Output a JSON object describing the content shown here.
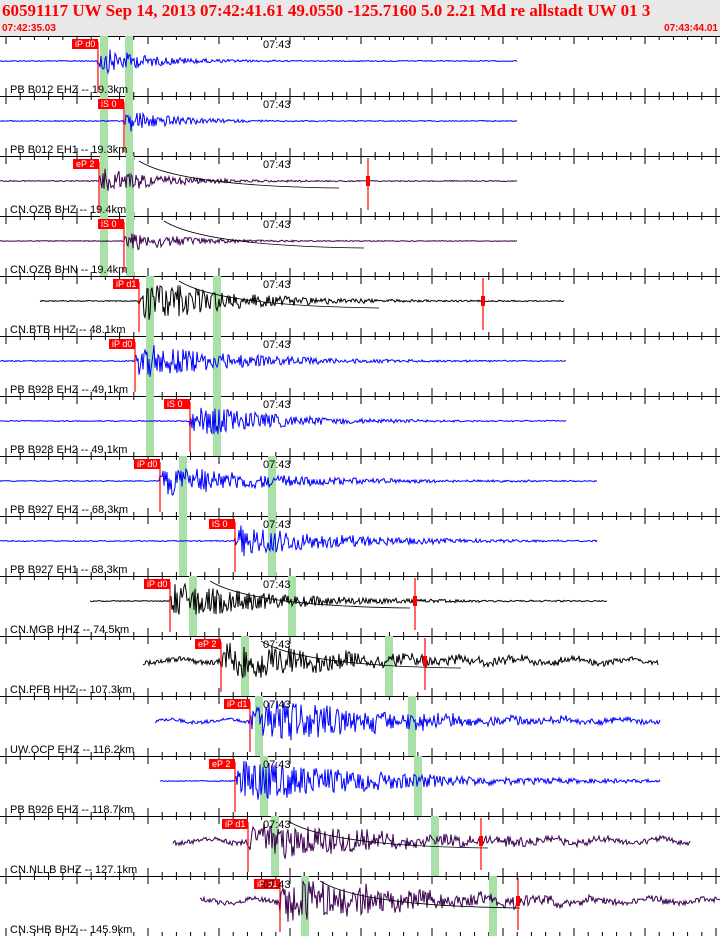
{
  "header": {
    "title": "60591117 UW Sep 14, 2013 07:42:41.61   49.0550 -125.7160  5.0 2.21 Md re allstadt UW 01    3",
    "start_time": "07:42:35.03",
    "end_time": "07:43:44.01"
  },
  "colors": {
    "blue": "#0000ff",
    "black": "#000000",
    "purple": "#3a0050",
    "pick": "#ff0000",
    "window": "#a8e0a8"
  },
  "time_tick": "07:43",
  "traces": [
    {
      "label": "PB B012 EHZ -- 19.3km",
      "color": "blue",
      "start": 0,
      "end": 517,
      "pick_label": "iP d0",
      "pick_x": 98,
      "gates": [
        104,
        129
      ],
      "onset": 98,
      "amp": 14,
      "dur": 160,
      "noise": 0.5,
      "marker": null
    },
    {
      "label": "PB B012 EH1 -- 19.3km",
      "color": "blue",
      "start": 0,
      "end": 517,
      "pick_label": "iS 0",
      "pick_x": 124,
      "gates": [
        104,
        129
      ],
      "onset": 124,
      "amp": 13,
      "dur": 140,
      "noise": 0.5,
      "marker": null
    },
    {
      "label": "CN.OZB BHZ -- 19.4km",
      "color": "purple",
      "start": 0,
      "end": 517,
      "pick_label": "eP 2",
      "pick_x": 99,
      "gates": [
        104,
        130
      ],
      "onset": 99,
      "amp": 14,
      "dur": 180,
      "noise": 0.5,
      "marker": 368
    },
    {
      "label": "CN.OZB BHN -- 19.4km",
      "color": "purple",
      "start": 0,
      "end": 517,
      "pick_label": "iS 0",
      "pick_x": 124,
      "gates": [
        104,
        130
      ],
      "onset": 124,
      "amp": 12,
      "dur": 160,
      "noise": 0.4,
      "marker": null
    },
    {
      "label": "CN.BTB HHZ -- 48.1km",
      "color": "black",
      "start": 40,
      "end": 564,
      "pick_label": "iP d1",
      "pick_x": 139,
      "gates": [
        150,
        217
      ],
      "onset": 139,
      "amp": 24,
      "dur": 260,
      "noise": 0.5,
      "marker": 483
    },
    {
      "label": "PB B928 EHZ -- 49.1km",
      "color": "blue",
      "start": 0,
      "end": 566,
      "pick_label": "iP d0",
      "pick_x": 135,
      "gates": [
        150,
        217
      ],
      "onset": 135,
      "amp": 20,
      "dur": 280,
      "noise": 0.5,
      "marker": null
    },
    {
      "label": "PB B928 EH2 -- 49.1km",
      "color": "blue",
      "start": 0,
      "end": 566,
      "pick_label": "iS 0",
      "pick_x": 190,
      "gates": [
        150,
        217
      ],
      "onset": 190,
      "amp": 18,
      "dur": 240,
      "noise": 0.5,
      "marker": null
    },
    {
      "label": "PB B927 EHZ -- 68.3km",
      "color": "blue",
      "start": 0,
      "end": 597,
      "pick_label": "iP d0",
      "pick_x": 160,
      "gates": [
        183,
        272
      ],
      "onset": 160,
      "amp": 17,
      "dur": 320,
      "noise": 0.5,
      "marker": null
    },
    {
      "label": "PB B927 EH1 -- 68.3km",
      "color": "blue",
      "start": 0,
      "end": 597,
      "pick_label": "iS 0",
      "pick_x": 235,
      "gates": [
        183,
        272
      ],
      "onset": 235,
      "amp": 17,
      "dur": 300,
      "noise": 0.5,
      "marker": null
    },
    {
      "label": "CN.MGB HHZ -- 74.5km",
      "color": "black",
      "start": 90,
      "end": 607,
      "pick_label": "iP d0",
      "pick_x": 170,
      "gates": [
        193,
        292
      ],
      "onset": 170,
      "amp": 20,
      "dur": 300,
      "noise": 0.5,
      "marker": 415
    },
    {
      "label": "CN.PFB HHZ -- 107.3km",
      "color": "black",
      "start": 143,
      "end": 658,
      "pick_label": "eP 2",
      "pick_x": 221,
      "gates": [
        245,
        389
      ],
      "onset": 221,
      "amp": 24,
      "dur": 380,
      "noise": 2.5,
      "marker": 425
    },
    {
      "label": "UW.OCP EHZ -- 116.2km",
      "color": "blue",
      "start": 155,
      "end": 660,
      "pick_label": "iP d1",
      "pick_x": 250,
      "gates": [
        259,
        412
      ],
      "onset": 250,
      "amp": 26,
      "dur": 400,
      "noise": 1.8,
      "marker": null
    },
    {
      "label": "PB B926 EHZ -- 118.7km",
      "color": "blue",
      "start": 160,
      "end": 660,
      "pick_label": "eP 2",
      "pick_x": 235,
      "gates": [
        264,
        418
      ],
      "onset": 235,
      "amp": 24,
      "dur": 420,
      "noise": 0.5,
      "marker": null
    },
    {
      "label": "CN.NLLB BHZ -- 127.1km",
      "color": "purple",
      "start": 173,
      "end": 690,
      "pick_label": "iP d1",
      "pick_x": 248,
      "gates": [
        275,
        435
      ],
      "onset": 248,
      "amp": 22,
      "dur": 400,
      "noise": 2.5,
      "marker": 481
    },
    {
      "label": "CN.SHB BHZ -- 145.9km",
      "color": "purple",
      "start": 200,
      "end": 720,
      "pick_label": "iP d1",
      "pick_x": 280,
      "gates": [
        305,
        493
      ],
      "onset": 280,
      "amp": 24,
      "dur": 420,
      "noise": 2.5,
      "marker": 518
    }
  ]
}
